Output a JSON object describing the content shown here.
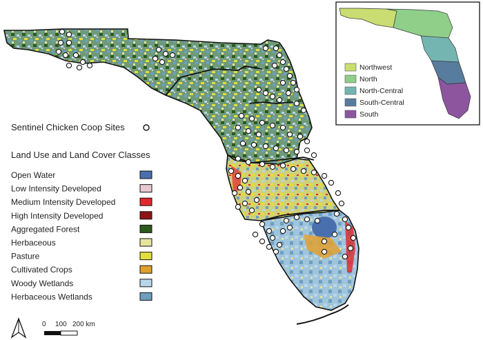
{
  "sentinel_label": "Sentinel Chicken Coop Sites",
  "landuse_title": "Land Use and Land Cover Classes",
  "landuse_classes": [
    {
      "label": "Open Water",
      "color": "#4a6fae"
    },
    {
      "label": "Low Intensity Developed",
      "color": "#e8c9d2"
    },
    {
      "label": "Medium Intensity Developed",
      "color": "#e2262a"
    },
    {
      "label": "High Intensity Developed",
      "color": "#8e1414"
    },
    {
      "label": "Aggregated Forest",
      "color": "#2c5a1e"
    },
    {
      "label": "Herbaceous",
      "color": "#e6e49b"
    },
    {
      "label": "Pasture",
      "color": "#e2de3a"
    },
    {
      "label": "Cultivated Crops",
      "color": "#e0a030"
    },
    {
      "label": "Woody Wetlands",
      "color": "#b8d6ea"
    },
    {
      "label": "Herbaceous Wetlands",
      "color": "#6e9fc1"
    }
  ],
  "inset_regions": [
    {
      "label": "Northwest",
      "color": "#c9dd72"
    },
    {
      "label": "North",
      "color": "#8fcf8a"
    },
    {
      "label": "North-Central",
      "color": "#74b5b2"
    },
    {
      "label": "South-Central",
      "color": "#577c9e"
    },
    {
      "label": "South",
      "color": "#8c559e"
    }
  ],
  "scale_bar": {
    "ticks": [
      "0",
      "100",
      "200 km"
    ]
  },
  "north_arrow": "north-arrow-icon"
}
